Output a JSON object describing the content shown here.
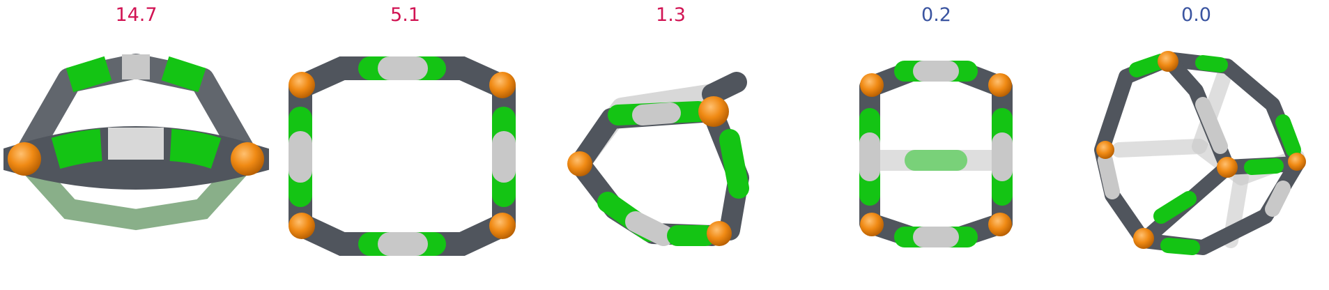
{
  "panels": [
    {
      "label": "14.7",
      "label_color": "#d11353"
    },
    {
      "label": "5.1",
      "label_color": "#d11353"
    },
    {
      "label": "1.3",
      "label_color": "#d11353"
    },
    {
      "label": "0.2",
      "label_color": "#3a54a0"
    },
    {
      "label": "0.0",
      "label_color": "#3a54a0"
    }
  ],
  "colors": {
    "dark": "#50555d",
    "green": "#14c414",
    "light": "#c8c8c8",
    "orange": "#f08a14",
    "background": "#ffffff"
  }
}
